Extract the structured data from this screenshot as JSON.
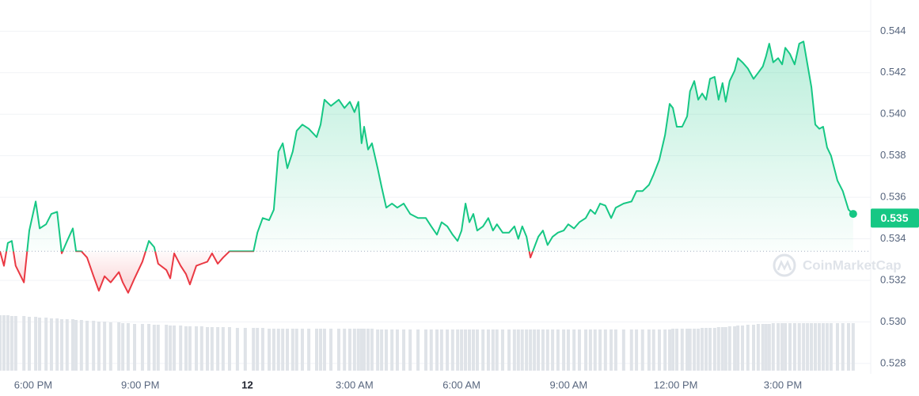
{
  "chart_data": {
    "type": "line",
    "x": [
      17.07,
      17.18,
      17.29,
      17.4,
      17.51,
      17.74,
      17.89,
      18.07,
      18.18,
      18.36,
      18.51,
      18.67,
      18.8,
      18.95,
      19.11,
      19.2,
      19.35,
      19.51,
      19.69,
      19.84,
      20.0,
      20.17,
      20.4,
      20.51,
      20.66,
      20.84,
      21.06,
      21.24,
      21.39,
      21.5,
      21.73,
      21.84,
      21.95,
      22.13,
      22.28,
      22.39,
      22.57,
      22.72,
      22.88,
      23.01,
      23.17,
      23.32,
      23.5,
      23.72,
      23.94,
      24.17,
      24.28,
      24.43,
      24.61,
      24.74,
      24.87,
      24.99,
      25.12,
      25.27,
      25.38,
      25.54,
      25.72,
      25.94,
      26.05,
      26.16,
      26.34,
      26.56,
      26.72,
      26.87,
      27.0,
      27.11,
      27.2,
      27.27,
      27.38,
      27.49,
      27.65,
      27.76,
      27.89,
      28.05,
      28.2,
      28.38,
      28.56,
      28.78,
      29.0,
      29.15,
      29.31,
      29.44,
      29.6,
      29.75,
      29.89,
      30.0,
      30.11,
      30.22,
      30.33,
      30.44,
      30.6,
      30.75,
      30.88,
      30.99,
      31.15,
      31.33,
      31.48,
      31.59,
      31.7,
      31.82,
      31.93,
      32.04,
      32.15,
      32.28,
      32.41,
      32.55,
      32.7,
      32.86,
      32.99,
      33.15,
      33.3,
      33.48,
      33.61,
      33.74,
      33.88,
      34.03,
      34.19,
      34.32,
      34.54,
      34.76,
      34.9,
      35.07,
      35.25,
      35.38,
      35.54,
      35.7,
      35.83,
      35.92,
      36.03,
      36.18,
      36.32,
      36.4,
      36.52,
      36.63,
      36.74,
      36.85,
      36.96,
      37.09,
      37.2,
      37.31,
      37.4,
      37.51,
      37.65,
      37.74,
      37.87,
      38.02,
      38.18,
      38.31,
      38.44,
      38.53,
      38.62,
      38.73,
      38.87,
      38.98,
      39.07,
      39.2,
      39.33,
      39.46,
      39.58,
      39.69,
      39.8,
      39.91,
      40.02,
      40.13,
      40.24,
      40.35,
      40.53,
      40.68,
      40.84,
      40.97
    ],
    "series": [
      {
        "name": "Price",
        "color": "#16c784",
        "color_below": "#ea3943",
        "values": [
          0.5334,
          0.5327,
          0.5338,
          0.5339,
          0.5327,
          0.5319,
          0.5344,
          0.5358,
          0.5345,
          0.5347,
          0.5352,
          0.5353,
          0.5333,
          0.5339,
          0.5345,
          0.5334,
          0.5334,
          0.5331,
          0.5322,
          0.5315,
          0.5322,
          0.5319,
          0.5324,
          0.5319,
          0.5314,
          0.5321,
          0.5329,
          0.5339,
          0.5336,
          0.5328,
          0.5325,
          0.5321,
          0.5333,
          0.5327,
          0.5323,
          0.5318,
          0.5327,
          0.5328,
          0.5329,
          0.5333,
          0.5328,
          0.5331,
          0.5334,
          0.5334,
          0.5334,
          0.5334,
          0.5343,
          0.535,
          0.5349,
          0.5354,
          0.5382,
          0.5386,
          0.5374,
          0.5382,
          0.5392,
          0.5395,
          0.5393,
          0.5389,
          0.5395,
          0.5407,
          0.5404,
          0.5407,
          0.5403,
          0.5406,
          0.5401,
          0.5406,
          0.5386,
          0.5394,
          0.5383,
          0.5386,
          0.5374,
          0.5365,
          0.5355,
          0.5357,
          0.5355,
          0.5357,
          0.5352,
          0.535,
          0.535,
          0.5346,
          0.5342,
          0.5348,
          0.5346,
          0.5342,
          0.5339,
          0.5344,
          0.5357,
          0.5348,
          0.5352,
          0.5344,
          0.5346,
          0.535,
          0.5344,
          0.5347,
          0.5343,
          0.5343,
          0.5346,
          0.534,
          0.5346,
          0.5341,
          0.5331,
          0.5336,
          0.5341,
          0.5344,
          0.5337,
          0.5341,
          0.5343,
          0.5344,
          0.5347,
          0.5345,
          0.5348,
          0.535,
          0.5354,
          0.5352,
          0.5357,
          0.5356,
          0.535,
          0.5355,
          0.5357,
          0.5358,
          0.5363,
          0.5363,
          0.5366,
          0.5371,
          0.5378,
          0.539,
          0.5405,
          0.5403,
          0.5394,
          0.5394,
          0.5399,
          0.5411,
          0.5416,
          0.5407,
          0.541,
          0.5407,
          0.5417,
          0.5418,
          0.5407,
          0.5415,
          0.5406,
          0.5416,
          0.5421,
          0.5427,
          0.5425,
          0.5422,
          0.5417,
          0.542,
          0.5423,
          0.5428,
          0.5434,
          0.5425,
          0.5427,
          0.5424,
          0.5432,
          0.5429,
          0.5424,
          0.5434,
          0.5435,
          0.5424,
          0.5413,
          0.5395,
          0.5393,
          0.5394,
          0.5384,
          0.538,
          0.5368,
          0.5363,
          0.5354,
          0.5352
        ]
      }
    ],
    "volume": {
      "color": "#dfe3e8",
      "values": [
        70,
        70,
        70,
        69,
        69,
        69,
        68,
        68,
        67,
        67,
        66,
        66,
        65,
        65,
        65,
        64,
        64,
        63,
        63,
        62,
        62,
        61,
        61,
        60,
        60,
        59,
        59,
        59,
        58,
        58,
        58,
        57,
        57,
        57,
        56,
        56,
        56,
        56,
        55,
        55,
        55,
        55,
        55,
        54,
        54,
        54,
        54,
        54,
        53,
        53,
        53,
        53,
        53,
        53,
        53,
        53,
        53,
        53,
        53,
        53,
        53,
        53,
        53,
        53,
        53,
        53,
        53,
        53,
        53,
        53,
        52,
        52,
        52,
        52,
        52,
        52,
        52,
        52,
        52,
        52,
        52,
        52,
        52,
        52,
        52,
        52,
        52,
        52,
        52,
        52,
        52,
        52,
        52,
        52,
        52,
        52,
        52,
        52,
        52,
        52,
        52,
        52,
        52,
        52,
        52,
        52,
        52,
        52,
        52,
        52,
        52,
        52,
        52,
        52,
        52,
        52,
        52,
        52,
        52,
        52,
        52,
        52,
        52,
        52,
        52,
        52,
        52,
        53,
        53,
        53,
        53,
        53,
        53,
        53,
        54,
        54,
        54,
        54,
        55,
        55,
        55,
        56,
        56,
        57,
        57,
        58,
        58,
        59,
        59,
        59,
        59,
        60,
        60,
        60,
        60,
        60,
        60,
        60,
        60,
        60,
        60,
        60,
        60,
        60,
        60,
        60,
        60,
        60,
        60,
        60
      ]
    },
    "baseline": 0.5334,
    "current_price": 0.535,
    "xlim": [
      17.07,
      41.24
    ],
    "xticks": [
      {
        "value": 18,
        "label": "6:00 PM"
      },
      {
        "value": 21,
        "label": "9:00 PM"
      },
      {
        "value": 24,
        "label": "12"
      },
      {
        "value": 27,
        "label": "3:00 AM"
      },
      {
        "value": 30,
        "label": "6:00 AM"
      },
      {
        "value": 33,
        "label": "9:00 AM"
      },
      {
        "value": 36,
        "label": "12:00 PM"
      },
      {
        "value": 39,
        "label": "3:00 PM"
      }
    ],
    "ylim": [
      0.5275,
      0.5455
    ],
    "yticks": [
      0.528,
      {
        "value": 0.53,
        "label": "0.530"
      },
      0.532,
      0.534,
      0.536,
      0.538,
      {
        "value": 0.54,
        "label": "0.540"
      },
      0.542,
      0.544
    ],
    "grid": true,
    "watermark": "CoinMarketCap"
  }
}
